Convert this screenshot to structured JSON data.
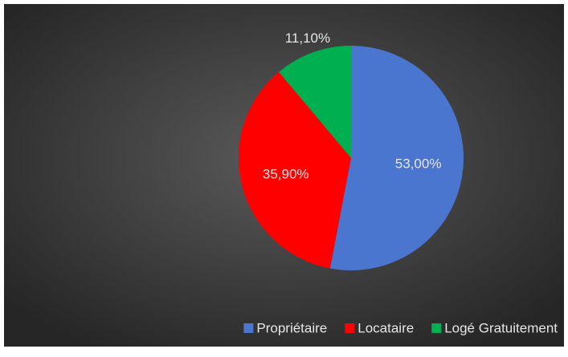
{
  "chart_data": {
    "type": "pie",
    "categories": [
      "Propriétaire",
      "Locataire",
      "Logé Gratuitement"
    ],
    "values": [
      53,
      35.9,
      11.1
    ],
    "value_labels": [
      "53,00%",
      "35,90%",
      "11,10%"
    ],
    "colors": [
      "#4a76d0",
      "#ff0000",
      "#00b050"
    ],
    "legend": "bottom-right"
  }
}
